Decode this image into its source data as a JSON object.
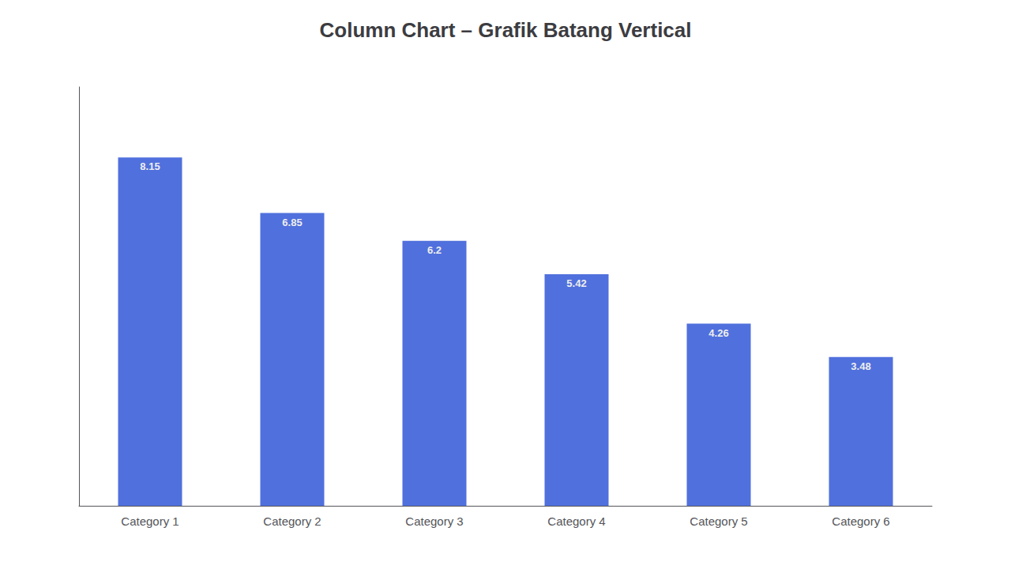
{
  "chart_data": {
    "type": "bar",
    "title": "Column Chart – Grafik Batang Vertical",
    "categories": [
      "Category 1",
      "Category 2",
      "Category 3",
      "Category 4",
      "Category 5",
      "Category 6"
    ],
    "values": [
      8.15,
      6.85,
      6.2,
      5.42,
      4.26,
      3.48
    ],
    "ylim": [
      0,
      9.8
    ],
    "grid": false,
    "data_labels": true,
    "tick_labels": "x"
  }
}
